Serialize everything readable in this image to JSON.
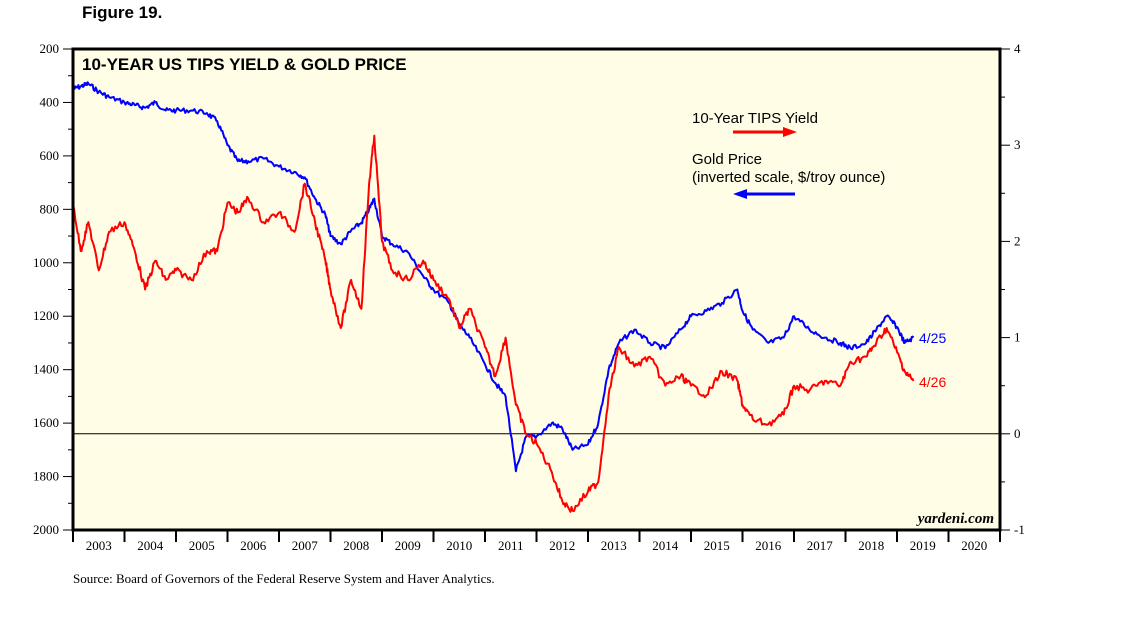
{
  "figure_label": "Figure 19.",
  "source": "Source: Board of Governors of the Federal Reserve System and Haver Analytics.",
  "watermark": "yardeni.com",
  "colors": {
    "plot_bg": "#fffde6",
    "tips": "#ff0000",
    "gold": "#0000ff"
  },
  "chart_data": {
    "type": "line",
    "title": "10-YEAR US TIPS YIELD & GOLD PRICE",
    "xlabel": "",
    "x_categories": [
      "2003",
      "2004",
      "2005",
      "2006",
      "2007",
      "2008",
      "2009",
      "2010",
      "2011",
      "2012",
      "2013",
      "2014",
      "2015",
      "2016",
      "2017",
      "2018",
      "2019",
      "2020"
    ],
    "xlim": [
      2003,
      2021
    ],
    "y_left": {
      "label": "Gold Price (inverted scale, $/troy ounce)",
      "ylim": [
        2000,
        200
      ],
      "inverted": true,
      "ticks": [
        200,
        400,
        600,
        800,
        1000,
        1200,
        1400,
        1600,
        1800,
        2000
      ]
    },
    "y_right": {
      "label": "10-Year TIPS Yield",
      "ylim": [
        -1,
        4
      ],
      "ticks": [
        4,
        3,
        2,
        1,
        0,
        -1
      ]
    },
    "zero_line_right": 0,
    "grid": false,
    "legend": [
      {
        "name": "10-Year TIPS Yield",
        "axis": "right",
        "arrow": "right"
      },
      {
        "name": "Gold Price",
        "sub": "(inverted scale, $/troy ounce)",
        "axis": "left",
        "arrow": "left"
      }
    ],
    "legend_position": "top-right",
    "series": [
      {
        "name": "10-Year TIPS Yield",
        "axis": "right",
        "end_label": "4/26",
        "x": [
          2003.0,
          2003.15,
          2003.3,
          2003.5,
          2003.7,
          2004.0,
          2004.2,
          2004.4,
          2004.6,
          2004.8,
          2005.0,
          2005.3,
          2005.6,
          2005.8,
          2006.0,
          2006.2,
          2006.4,
          2006.7,
          2007.0,
          2007.3,
          2007.5,
          2007.7,
          2007.9,
          2008.0,
          2008.2,
          2008.4,
          2008.6,
          2008.75,
          2008.85,
          2009.0,
          2009.2,
          2009.5,
          2009.8,
          2010.0,
          2010.3,
          2010.5,
          2010.7,
          2011.0,
          2011.2,
          2011.4,
          2011.6,
          2011.8,
          2012.0,
          2012.3,
          2012.5,
          2012.7,
          2013.0,
          2013.2,
          2013.4,
          2013.6,
          2013.9,
          2014.2,
          2014.5,
          2014.8,
          2015.0,
          2015.3,
          2015.6,
          2015.9,
          2016.0,
          2016.2,
          2016.5,
          2016.8,
          2017.0,
          2017.3,
          2017.6,
          2017.9,
          2018.1,
          2018.4,
          2018.6,
          2018.8,
          2019.0,
          2019.15,
          2019.32
        ],
        "values": [
          2.4,
          1.9,
          2.2,
          1.7,
          2.1,
          2.2,
          1.9,
          1.5,
          1.8,
          1.6,
          1.7,
          1.6,
          1.9,
          1.9,
          2.4,
          2.3,
          2.45,
          2.2,
          2.3,
          2.1,
          2.6,
          2.2,
          1.8,
          1.5,
          1.1,
          1.6,
          1.3,
          2.6,
          3.1,
          2.0,
          1.7,
          1.6,
          1.8,
          1.6,
          1.4,
          1.1,
          1.3,
          0.9,
          0.6,
          1.0,
          0.3,
          0.0,
          -0.1,
          -0.4,
          -0.7,
          -0.8,
          -0.6,
          -0.5,
          0.4,
          0.9,
          0.7,
          0.8,
          0.5,
          0.6,
          0.5,
          0.4,
          0.65,
          0.55,
          0.3,
          0.15,
          0.1,
          0.2,
          0.5,
          0.45,
          0.55,
          0.5,
          0.75,
          0.8,
          0.95,
          1.1,
          0.85,
          0.65,
          0.55
        ]
      },
      {
        "name": "Gold Price",
        "axis": "left",
        "end_label": "4/25",
        "x": [
          2003.0,
          2003.15,
          2003.3,
          2003.5,
          2003.7,
          2004.0,
          2004.2,
          2004.4,
          2004.6,
          2004.8,
          2005.0,
          2005.3,
          2005.6,
          2005.8,
          2006.0,
          2006.2,
          2006.4,
          2006.7,
          2007.0,
          2007.3,
          2007.5,
          2007.7,
          2007.9,
          2008.0,
          2008.2,
          2008.4,
          2008.6,
          2008.75,
          2008.85,
          2009.0,
          2009.2,
          2009.5,
          2009.8,
          2010.0,
          2010.3,
          2010.5,
          2010.7,
          2011.0,
          2011.2,
          2011.4,
          2011.6,
          2011.8,
          2012.0,
          2012.3,
          2012.5,
          2012.7,
          2013.0,
          2013.2,
          2013.4,
          2013.6,
          2013.9,
          2014.2,
          2014.5,
          2014.8,
          2015.0,
          2015.3,
          2015.6,
          2015.9,
          2016.0,
          2016.2,
          2016.5,
          2016.8,
          2017.0,
          2017.3,
          2017.6,
          2017.9,
          2018.1,
          2018.4,
          2018.6,
          2018.8,
          2019.0,
          2019.15,
          2019.32
        ],
        "values": [
          350,
          340,
          330,
          360,
          380,
          400,
          410,
          420,
          400,
          430,
          430,
          430,
          440,
          470,
          560,
          620,
          620,
          610,
          640,
          660,
          680,
          760,
          820,
          900,
          930,
          880,
          850,
          800,
          760,
          900,
          930,
          960,
          1050,
          1100,
          1150,
          1230,
          1280,
          1380,
          1450,
          1500,
          1780,
          1650,
          1650,
          1600,
          1620,
          1700,
          1680,
          1600,
          1400,
          1300,
          1250,
          1300,
          1320,
          1250,
          1200,
          1180,
          1150,
          1100,
          1180,
          1250,
          1300,
          1280,
          1200,
          1250,
          1280,
          1300,
          1320,
          1300,
          1250,
          1200,
          1240,
          1300,
          1280
        ]
      }
    ]
  }
}
